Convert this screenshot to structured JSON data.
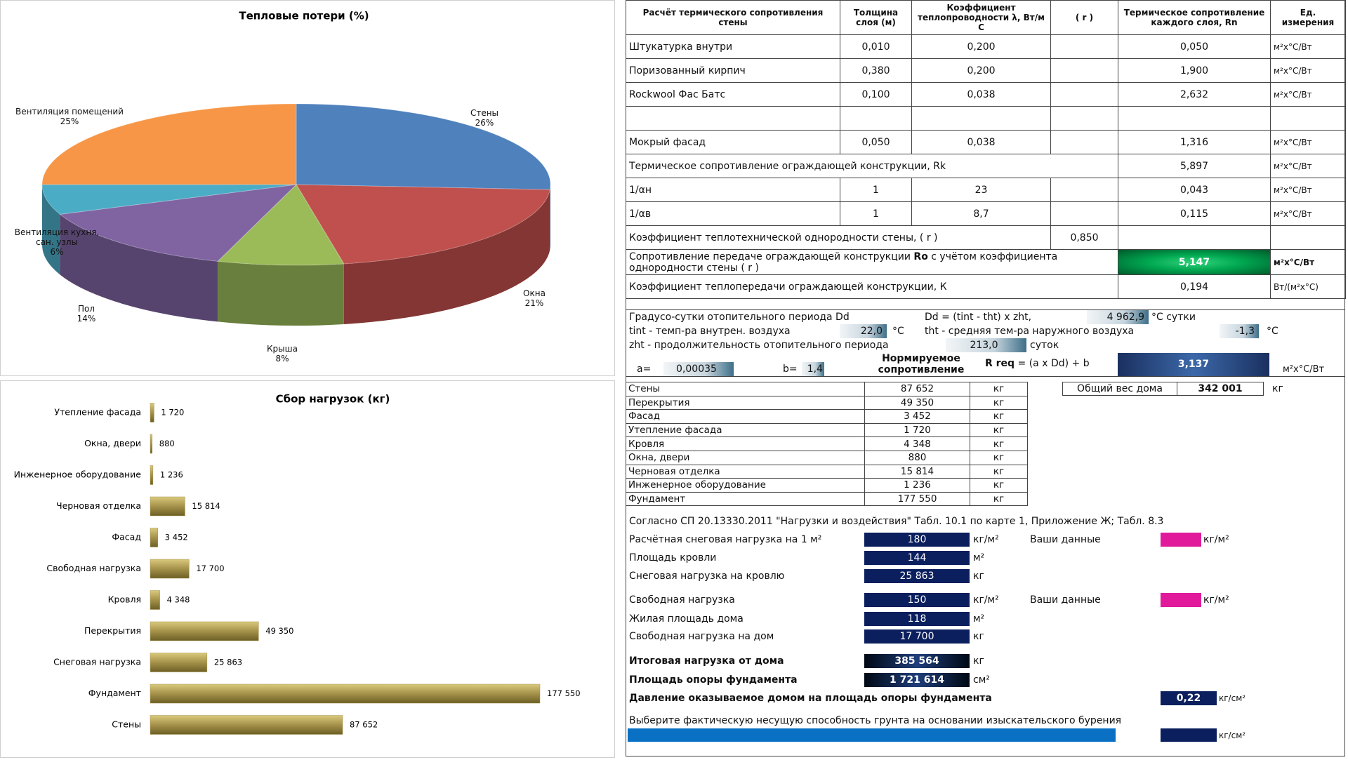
{
  "chart_data": [
    {
      "type": "pie",
      "title": "Тепловые потери (%)",
      "categories": [
        "Стены",
        "Окна",
        "Крыша",
        "Пол",
        "Вентиляция кухня, сан. узлы",
        "Вентиляция помещений"
      ],
      "values": [
        26,
        21,
        8,
        14,
        6,
        25
      ],
      "value_labels": [
        "26%",
        "21%",
        "8%",
        "14%",
        "6%",
        "25%"
      ],
      "colors": [
        "#4f81bd",
        "#c0504d",
        "#9bbb59",
        "#8064a2",
        "#4bacc6",
        "#f79646"
      ]
    },
    {
      "type": "bar",
      "orientation": "horizontal",
      "title": "Сбор нагрузок (кг)",
      "categories": [
        "Утепление фасада",
        "Окна, двери",
        "Инженерное оборудование",
        "Черновая отделка",
        "Фасад",
        "Свободная нагрузка",
        "Кровля",
        "Перекрытия",
        "Снеговая нагрузка",
        "Фундамент",
        "Стены"
      ],
      "values": [
        1720,
        880,
        1236,
        15814,
        3452,
        17700,
        4348,
        49350,
        25863,
        177550,
        87652
      ],
      "value_labels": [
        "1 720",
        "880",
        "1 236",
        "15 814",
        "3 452",
        "17 700",
        "4 348",
        "49 350",
        "25 863",
        "177 550",
        "87 652"
      ],
      "color": "#a4924a"
    }
  ],
  "thermal_table": {
    "header": [
      "Расчёт термического сопротивления стены",
      "Толщина слоя (м)",
      "Коэффициент теплопроводности λ, Вт/м С",
      "( r )",
      "Термическое сопротивление каждого слоя, Rn",
      "Ед. измерения"
    ],
    "layers": [
      [
        "Штукатурка внутри",
        "0,010",
        "0,200",
        "0,050",
        "м²х°С/Вт"
      ],
      [
        "Поризованный кирпич",
        "0,380",
        "0,200",
        "1,900",
        "м²х°С/Вт"
      ],
      [
        "Rockwool Фас Батс",
        "0,100",
        "0,038",
        "2,632",
        "м²х°С/Вт"
      ],
      [
        "Мокрый фасад",
        "0,050",
        "0,038",
        "1,316",
        "м²х°С/Вт"
      ]
    ],
    "rk": {
      "label": "Термическое сопротивление ограждающей конструкции, Rk",
      "value": "5,897",
      "unit": "м²х°С/Вт"
    },
    "alpha_n": [
      "1/αн",
      "1",
      "23",
      "0,043",
      "м²х°С/Вт"
    ],
    "alpha_v": [
      "1/αв",
      "1",
      "8,7",
      "0,115",
      "м²х°С/Вт"
    ],
    "r_coef": {
      "label": "Коэффициент теплотехнической однородности стены, ( r )",
      "value": "0,850"
    },
    "ro": {
      "label": [
        "Сопротивление передаче ограждающей конструкции",
        "Ro",
        "с учётом коэффициента однородности стены ( r )"
      ],
      "value": "5,147",
      "unit": "м²х°С/Вт"
    },
    "k": {
      "label": "Коэффициент теплопередачи ограждающей конструкции, К",
      "value": "0,194",
      "unit": "Вт/(м²х°С)"
    }
  },
  "degree_days": {
    "dd_label": "Градусо-сутки отопительного периода Dd",
    "dd_formula": "Dd = (tint - tht) x zht,",
    "dd_value": "4 962,9",
    "dd_unit": "°С сутки",
    "tint_label": "tint - темп-ра внутрен. воздуха",
    "tint_value": "22,0",
    "tint_unit": "°С",
    "tht_label": "tht - средняя тем-ра наружного воздуха",
    "tht_value": "-1,3",
    "tht_unit": "°С",
    "zht_label": "zht - продолжительность отопительного периода",
    "zht_value": "213,0",
    "zht_unit": "суток",
    "a_label": "a=",
    "a_value": "0,00035",
    "b_label": "b=",
    "b_value": "1,4",
    "rreq_label": "Нормируемое сопротивление",
    "rreq_formula": [
      "R req",
      "= (a x Dd) + b"
    ],
    "rreq_value": "3,137",
    "rreq_unit": "м²х°С/Вт"
  },
  "loads_table": {
    "rows": [
      [
        "Стены",
        "87 652",
        "кг"
      ],
      [
        "Перекрытия",
        "49 350",
        "кг"
      ],
      [
        "Фасад",
        "3 452",
        "кг"
      ],
      [
        "Утепление фасада",
        "1 720",
        "кг"
      ],
      [
        "Кровля",
        "4 348",
        "кг"
      ],
      [
        "Окна, двери",
        "880",
        "кг"
      ],
      [
        "Черновая отделка",
        "15 814",
        "кг"
      ],
      [
        "Инженерное оборудование",
        "1 236",
        "кг"
      ],
      [
        "Фундамент",
        "177 550",
        "кг"
      ]
    ],
    "total": {
      "label": "Общий вес дома",
      "value": "342 001",
      "unit": "кг"
    }
  },
  "snow_loads": {
    "source": "Согласно СП 20.13330.2011 \"Нагрузки и воздействия\"  Табл. 10.1 по карте 1, Приложение Ж; Табл. 8.3",
    "rows": [
      [
        "Расчётная снеговая нагрузка на 1 м²",
        "180",
        "кг/м²"
      ],
      [
        "Площадь кровли",
        "144",
        "м²"
      ],
      [
        "Снеговая нагрузка на кровлю",
        "25 863",
        "кг"
      ],
      [
        "Свободная нагрузка",
        "150",
        "кг/м²"
      ],
      [
        "Жилая площадь дома",
        "118",
        "м²"
      ],
      [
        "Свободная нагрузка на дом",
        "17 700",
        "кг"
      ],
      [
        "Итоговая нагрузка от дома",
        "385 564",
        "кг"
      ],
      [
        "Площадь опоры фундамента",
        "1 721 614",
        "см²"
      ]
    ],
    "your_data": [
      {
        "label": "Ваши данные",
        "unit": "кг/м²"
      },
      {
        "label": "Ваши данные",
        "unit": "кг/м²"
      }
    ],
    "pressure": {
      "label": "Давление оказываемое домом на площадь опоры фундамента",
      "value": "0,22",
      "unit": "кг/см²"
    },
    "soil": {
      "label": "Выберите фактическую несущую способность грунта на основании изыскательского бурения",
      "unit": "кг/см²"
    }
  }
}
